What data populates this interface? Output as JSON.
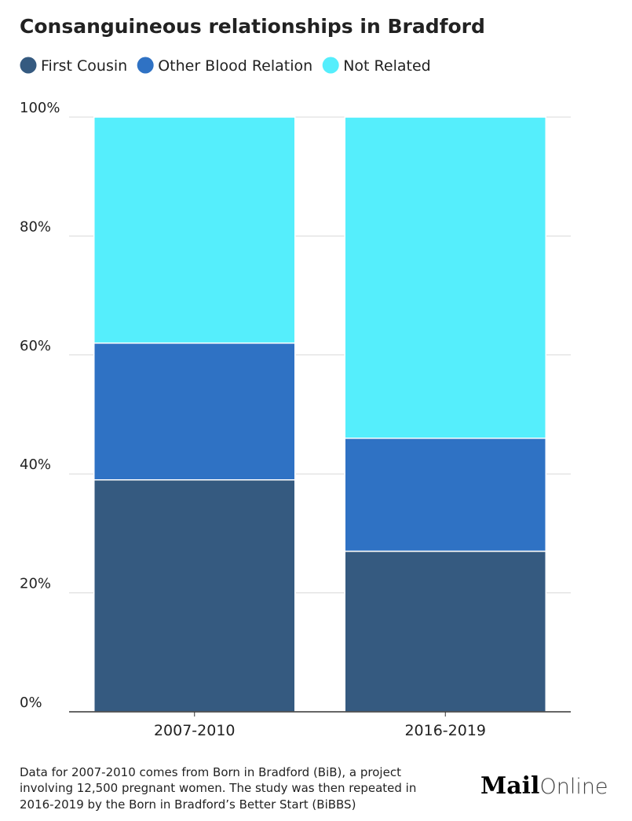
{
  "chart_data": {
    "type": "stacked-bar",
    "title": "Consanguineous relationships in Bradford",
    "categories": [
      "2007-2010",
      "2016-2019"
    ],
    "series": [
      {
        "name": "First Cousin",
        "color": "#355a80",
        "values": [
          39,
          27
        ]
      },
      {
        "name": "Other Blood Relation",
        "color": "#2f72c4",
        "values": [
          23,
          19
        ]
      },
      {
        "name": "Not Related",
        "color": "#55eefc",
        "values": [
          38,
          54
        ]
      }
    ],
    "ylim": [
      0,
      100
    ],
    "yticks": [
      {
        "value": 0,
        "label": "0%"
      },
      {
        "value": 20,
        "label": "20%"
      },
      {
        "value": 40,
        "label": "40%"
      },
      {
        "value": 60,
        "label": "60%"
      },
      {
        "value": 80,
        "label": "80%"
      },
      {
        "value": 100,
        "label": "100%"
      }
    ],
    "grid": true,
    "note": [
      "Data for 2007-2010 comes from Born in Bradford (BiB), a project",
      "involving 12,500 pregnant women. The study was then repeated in",
      "2016-2019 by the Born in Bradford’s Better Start (BiBBS)"
    ],
    "logo": {
      "bold": "Mail",
      "light": "Online"
    }
  }
}
